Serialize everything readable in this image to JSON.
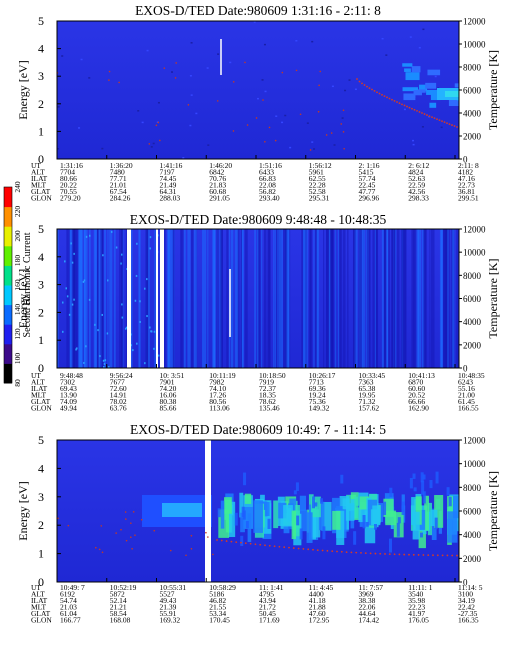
{
  "chart_data": {
    "type": "heatmap",
    "colorbar": {
      "label": "Second Harmonic Current",
      "ticks": [
        "80",
        "100",
        "120",
        "140",
        "160",
        "180",
        "200",
        "220",
        "240"
      ],
      "colors": [
        "#000000",
        "#3b0a8a",
        "#1f1ff0",
        "#0a6bff",
        "#00c8ff",
        "#00e08a",
        "#60f000",
        "#e8f000",
        "#ff9000",
        "#ff0000"
      ]
    },
    "panels": [
      {
        "title": "EXOS-D/TED   Date:980609   1:31:16 - 2:11: 8",
        "ylabel": "Energy [eV]",
        "y2label": "Temperature [K]",
        "ylim": [
          0,
          5
        ],
        "yticks": [
          "0",
          "1",
          "2",
          "3",
          "4",
          "5"
        ],
        "y2lim": [
          0,
          12000
        ],
        "y2ticks": [
          "0",
          "2000",
          "4000",
          "6000",
          "8000",
          "10000",
          "12000"
        ],
        "orbit": {
          "labels": [
            "UT",
            "ALT",
            "ILAT",
            "MLT",
            "GLAT",
            "GLON"
          ],
          "columns": [
            [
              "1:31:16",
              "7704",
              "80.66",
              "20.22",
              "70.55",
              "279.20"
            ],
            [
              "1:36:20",
              "7480",
              "77.71",
              "21.01",
              "67.54",
              "284.26"
            ],
            [
              "1:41:16",
              "7197",
              "74.45",
              "21.49",
              "64.31",
              "288.03"
            ],
            [
              "1:46:20",
              "6842",
              "70.76",
              "21.83",
              "60.68",
              "291.05"
            ],
            [
              "1:51:16",
              "6433",
              "66.83",
              "22.08",
              "56.82",
              "293.40"
            ],
            [
              "1:56:12",
              "5961",
              "62.55",
              "22.28",
              "52.58",
              "295.31"
            ],
            [
              "2: 1:16",
              "5415",
              "57.74",
              "22.45",
              "47.77",
              "296.96"
            ],
            [
              "2: 6:12",
              "4824",
              "52.63",
              "22.59",
              "42.56",
              "298.33"
            ],
            [
              "2:11: 8",
              "4182",
              "47.16",
              "22.73",
              "36.81",
              "299.51"
            ]
          ]
        }
      },
      {
        "title": "EXOS-D/TED   Date:980609   9:48:48 - 10:48:35",
        "ylabel": "Energy [eV]",
        "y2label": "Temperature [K]",
        "ylim": [
          0,
          5
        ],
        "yticks": [
          "0",
          "1",
          "2",
          "3",
          "4",
          "5"
        ],
        "y2lim": [
          0,
          12000
        ],
        "y2ticks": [
          "0",
          "2000",
          "4000",
          "6000",
          "8000",
          "10000",
          "12000"
        ],
        "orbit": {
          "labels": [
            "UT",
            "ALT",
            "ILAT",
            "MLT",
            "GLAT",
            "GLON"
          ],
          "columns": [
            [
              "9:48:48",
              "7302",
              "69.43",
              "13.90",
              "74.09",
              "49.94"
            ],
            [
              "9:56:24",
              "7677",
              "72.60",
              "14.91",
              "78.02",
              "63.76"
            ],
            [
              "10: 3:51",
              "7901",
              "74.20",
              "16.06",
              "80.38",
              "85.66"
            ],
            [
              "10:11:19",
              "7982",
              "74.10",
              "17.26",
              "80.56",
              "113.06"
            ],
            [
              "10:18:50",
              "7919",
              "72.37",
              "18.35",
              "78.62",
              "135.46"
            ],
            [
              "10:26:17",
              "7713",
              "69.36",
              "19.24",
              "75.36",
              "149.32"
            ],
            [
              "10:33:45",
              "7363",
              "65.38",
              "19.95",
              "71.32",
              "157.62"
            ],
            [
              "10:41:13",
              "6870",
              "60.60",
              "20.52",
              "66.66",
              "162.90"
            ],
            [
              "10:48:35",
              "6243",
              "55.16",
              "21.00",
              "61.45",
              "166.55"
            ]
          ]
        }
      },
      {
        "title": "EXOS-D/TED   Date:980609   10:49: 7 - 11:14: 5",
        "ylabel": "Energy [eV]",
        "y2label": "Temperature [K]",
        "ylim": [
          0,
          5
        ],
        "yticks": [
          "0",
          "1",
          "2",
          "3",
          "4",
          "5"
        ],
        "y2lim": [
          0,
          12000
        ],
        "y2ticks": [
          "0",
          "2000",
          "4000",
          "6000",
          "8000",
          "10000",
          "12000"
        ],
        "orbit": {
          "labels": [
            "UT",
            "ALT",
            "ILAT",
            "MLT",
            "GLAT",
            "GLON"
          ],
          "columns": [
            [
              "10:49: 7",
              "6192",
              "54.74",
              "21.03",
              "61.04",
              "166.77"
            ],
            [
              "10:52:19",
              "5872",
              "52.14",
              "21.21",
              "58.54",
              "168.08"
            ],
            [
              "10:55:31",
              "5527",
              "49.43",
              "21.39",
              "55.91",
              "169.32"
            ],
            [
              "10:58:29",
              "5186",
              "46.82",
              "21.55",
              "53.34",
              "170.45"
            ],
            [
              "11: 1:41",
              "4795",
              "43.94",
              "21.72",
              "50.45",
              "171.69"
            ],
            [
              "11: 4:45",
              "4400",
              "41.18",
              "21.88",
              "47.60",
              "172.95"
            ],
            [
              "11: 7:57",
              "3969",
              "38.38",
              "22.06",
              "44.64",
              "174.42"
            ],
            [
              "11:11: 1",
              "3540",
              "35.98",
              "22.23",
              "41.97",
              "176.05"
            ],
            [
              "11:14: 5",
              "3100",
              "34.19",
              "22.42",
              "-27.35",
              "166.35"
            ]
          ]
        }
      }
    ]
  }
}
